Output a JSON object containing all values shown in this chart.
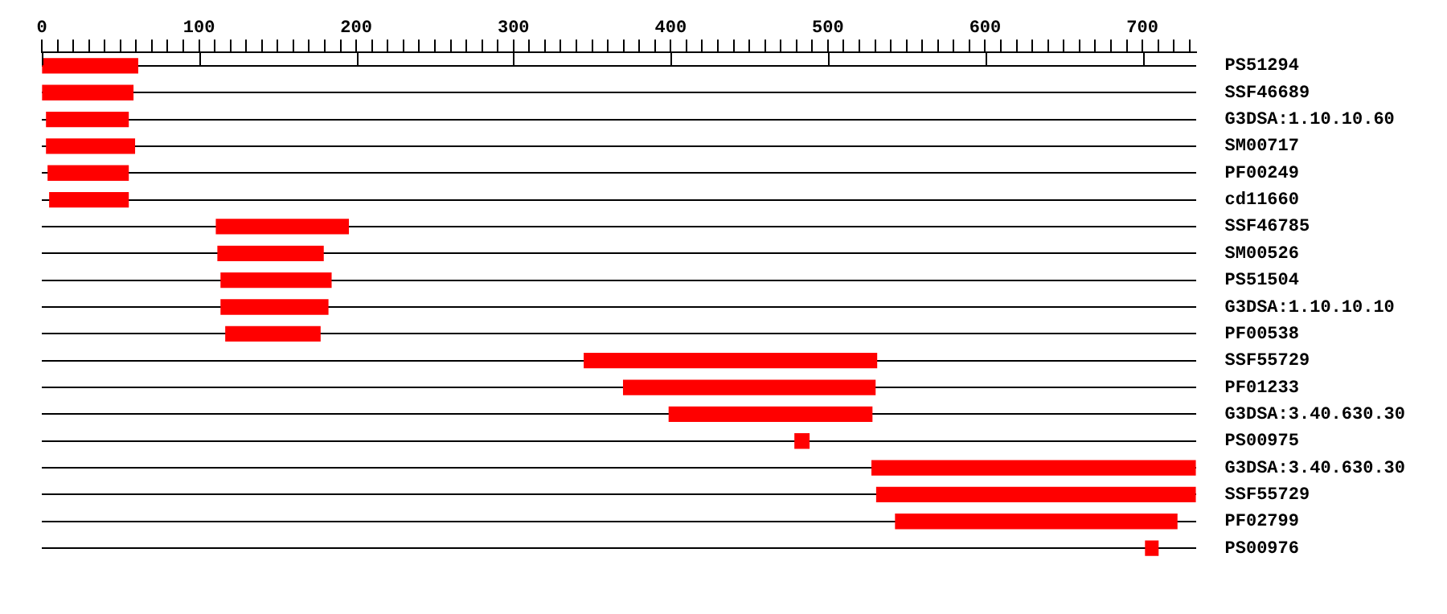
{
  "chart_data": {
    "type": "bar",
    "orientation": "horizontal",
    "categories": [
      "PS51294",
      "SSF46689",
      "G3DSA:1.10.10.60",
      "SM00717",
      "PF00249",
      "cd11660",
      "SSF46785",
      "SM00526",
      "PS51504",
      "G3DSA:1.10.10.10",
      "PF00538",
      "SSF55729",
      "PF01233",
      "G3DSA:3.40.630.30",
      "PS00975",
      "G3DSA:3.40.630.30",
      "SSF55729",
      "PF02799",
      "PS00976"
    ],
    "base": [
      0,
      0,
      3,
      3,
      4,
      5,
      111,
      112,
      114,
      114,
      117,
      345,
      370,
      399,
      479,
      528,
      531,
      543,
      702
    ],
    "values": [
      61,
      58,
      52,
      56,
      51,
      50,
      84,
      67,
      70,
      68,
      60,
      186,
      160,
      129,
      9,
      206,
      203,
      179,
      8
    ],
    "color": "#ff0000",
    "xlim": [
      0,
      734
    ],
    "xticks": [
      0,
      {
        "value": 10,
        "label": null
      },
      {
        "value": 20,
        "label": null
      },
      {
        "value": 30,
        "label": null
      },
      {
        "value": 40,
        "label": null
      },
      {
        "value": 50,
        "label": null
      },
      {
        "value": 60,
        "label": null
      },
      {
        "value": 70,
        "label": null
      },
      {
        "value": 80,
        "label": null
      },
      {
        "value": 90,
        "label": null
      },
      100,
      {
        "value": 110,
        "label": null
      },
      {
        "value": 120,
        "label": null
      },
      {
        "value": 130,
        "label": null
      },
      {
        "value": 140,
        "label": null
      },
      {
        "value": 150,
        "label": null
      },
      {
        "value": 160,
        "label": null
      },
      {
        "value": 170,
        "label": null
      },
      {
        "value": 180,
        "label": null
      },
      {
        "value": 190,
        "label": null
      },
      200,
      {
        "value": 210,
        "label": null
      },
      {
        "value": 220,
        "label": null
      },
      {
        "value": 230,
        "label": null
      },
      {
        "value": 240,
        "label": null
      },
      {
        "value": 250,
        "label": null
      },
      {
        "value": 260,
        "label": null
      },
      {
        "value": 270,
        "label": null
      },
      {
        "value": 280,
        "label": null
      },
      {
        "value": 290,
        "label": null
      },
      300,
      {
        "value": 310,
        "label": null
      },
      {
        "value": 320,
        "label": null
      },
      {
        "value": 330,
        "label": null
      },
      {
        "value": 340,
        "label": null
      },
      {
        "value": 350,
        "label": null
      },
      {
        "value": 360,
        "label": null
      },
      {
        "value": 370,
        "label": null
      },
      {
        "value": 380,
        "label": null
      },
      {
        "value": 390,
        "label": null
      },
      400,
      {
        "value": 410,
        "label": null
      },
      {
        "value": 420,
        "label": null
      },
      {
        "value": 430,
        "label": null
      },
      {
        "value": 440,
        "label": null
      },
      {
        "value": 450,
        "label": null
      },
      {
        "value": 460,
        "label": null
      },
      {
        "value": 470,
        "label": null
      },
      {
        "value": 480,
        "label": null
      },
      {
        "value": 490,
        "label": null
      },
      500,
      {
        "value": 510,
        "label": null
      },
      {
        "value": 520,
        "label": null
      },
      {
        "value": 530,
        "label": null
      },
      {
        "value": 540,
        "label": null
      },
      {
        "value": 550,
        "label": null
      },
      {
        "value": 560,
        "label": null
      },
      {
        "value": 570,
        "label": null
      },
      {
        "value": 580,
        "label": null
      },
      {
        "value": 590,
        "label": null
      },
      600,
      {
        "value": 610,
        "label": null
      },
      {
        "value": 620,
        "label": null
      },
      {
        "value": 630,
        "label": null
      },
      {
        "value": 640,
        "label": null
      },
      {
        "value": 650,
        "label": null
      },
      {
        "value": 660,
        "label": null
      },
      {
        "value": 670,
        "label": null
      },
      {
        "value": 680,
        "label": null
      },
      {
        "value": 690,
        "label": null
      },
      700,
      {
        "value": 710,
        "label": null
      },
      {
        "value": 720,
        "label": null
      },
      {
        "value": 730,
        "label": null
      }
    ],
    "grid": "y",
    "legend": false
  }
}
